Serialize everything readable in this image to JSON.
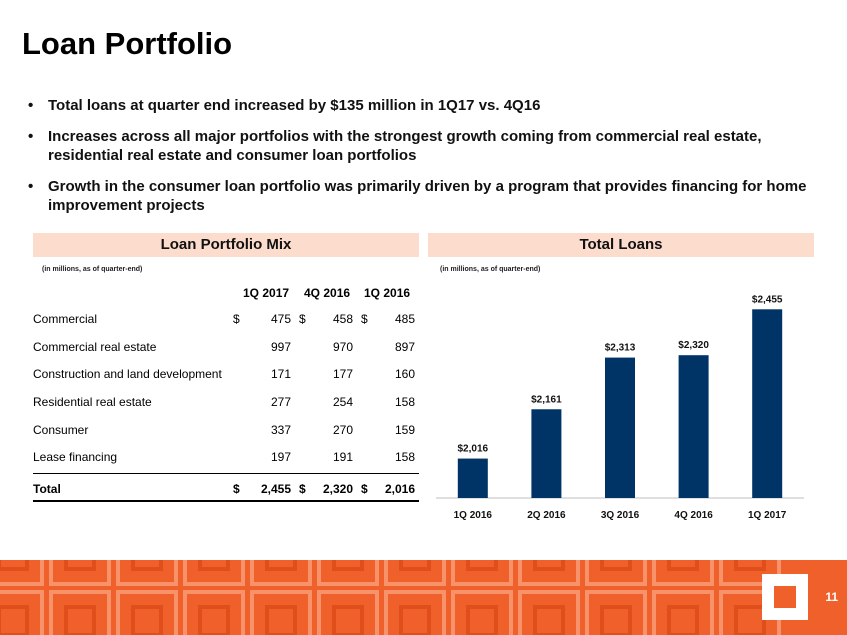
{
  "title": "Loan Portfolio",
  "bullets": [
    "Total loans at quarter end increased by $135 million in 1Q17 vs. 4Q16",
    "Increases across all major portfolios with the strongest growth coming from commercial real estate, residential real estate and consumer loan portfolios",
    "Growth in the consumer loan portfolio was primarily driven by a program that provides financing for home improvement projects"
  ],
  "mix": {
    "heading": "Loan Portfolio Mix",
    "note": "(in millions, as of quarter-end)",
    "columns": [
      "1Q 2017",
      "4Q 2016",
      "1Q 2016"
    ],
    "rows": [
      {
        "label": "Commercial",
        "dollar": "$",
        "v1": "475",
        "d2": "$",
        "v2": "458",
        "d3": "$",
        "v3": "485"
      },
      {
        "label": "Commercial real estate",
        "dollar": "",
        "v1": "997",
        "d2": "",
        "v2": "970",
        "d3": "",
        "v3": "897"
      },
      {
        "label": "Construction and land development",
        "dollar": "",
        "v1": "171",
        "d2": "",
        "v2": "177",
        "d3": "",
        "v3": "160"
      },
      {
        "label": "Residential real estate",
        "dollar": "",
        "v1": "277",
        "d2": "",
        "v2": "254",
        "d3": "",
        "v3": "158"
      },
      {
        "label": "Consumer",
        "dollar": "",
        "v1": "337",
        "d2": "",
        "v2": "270",
        "d3": "",
        "v3": "159"
      },
      {
        "label": "Lease financing",
        "dollar": "",
        "v1": "197",
        "d2": "",
        "v2": "191",
        "d3": "",
        "v3": "158"
      }
    ],
    "total": {
      "label": "Total",
      "dollar": "$",
      "v1": "2,455",
      "d2": "$",
      "v2": "2,320",
      "d3": "$",
      "v3": "2,016"
    }
  },
  "loans": {
    "heading": "Total Loans",
    "note": "(in millions, as of quarter-end)"
  },
  "chart_data": {
    "type": "bar",
    "categories": [
      "1Q 2016",
      "2Q 2016",
      "3Q 2016",
      "4Q 2016",
      "1Q 2017"
    ],
    "values": [
      2016,
      2161,
      2313,
      2320,
      2455
    ],
    "data_labels": [
      "$2,016",
      "$2,161",
      "$2,313",
      "$2,320",
      "$2,455"
    ],
    "title": "Total Loans",
    "bar_color": "#003366",
    "ylim": [
      1900,
      2500
    ]
  },
  "colors": {
    "accent": "#f0602b",
    "header_bg": "#fcdccd",
    "bar": "#003366"
  },
  "footer": {
    "page_number": "11",
    "logo_icon": "square-logo-icon"
  }
}
